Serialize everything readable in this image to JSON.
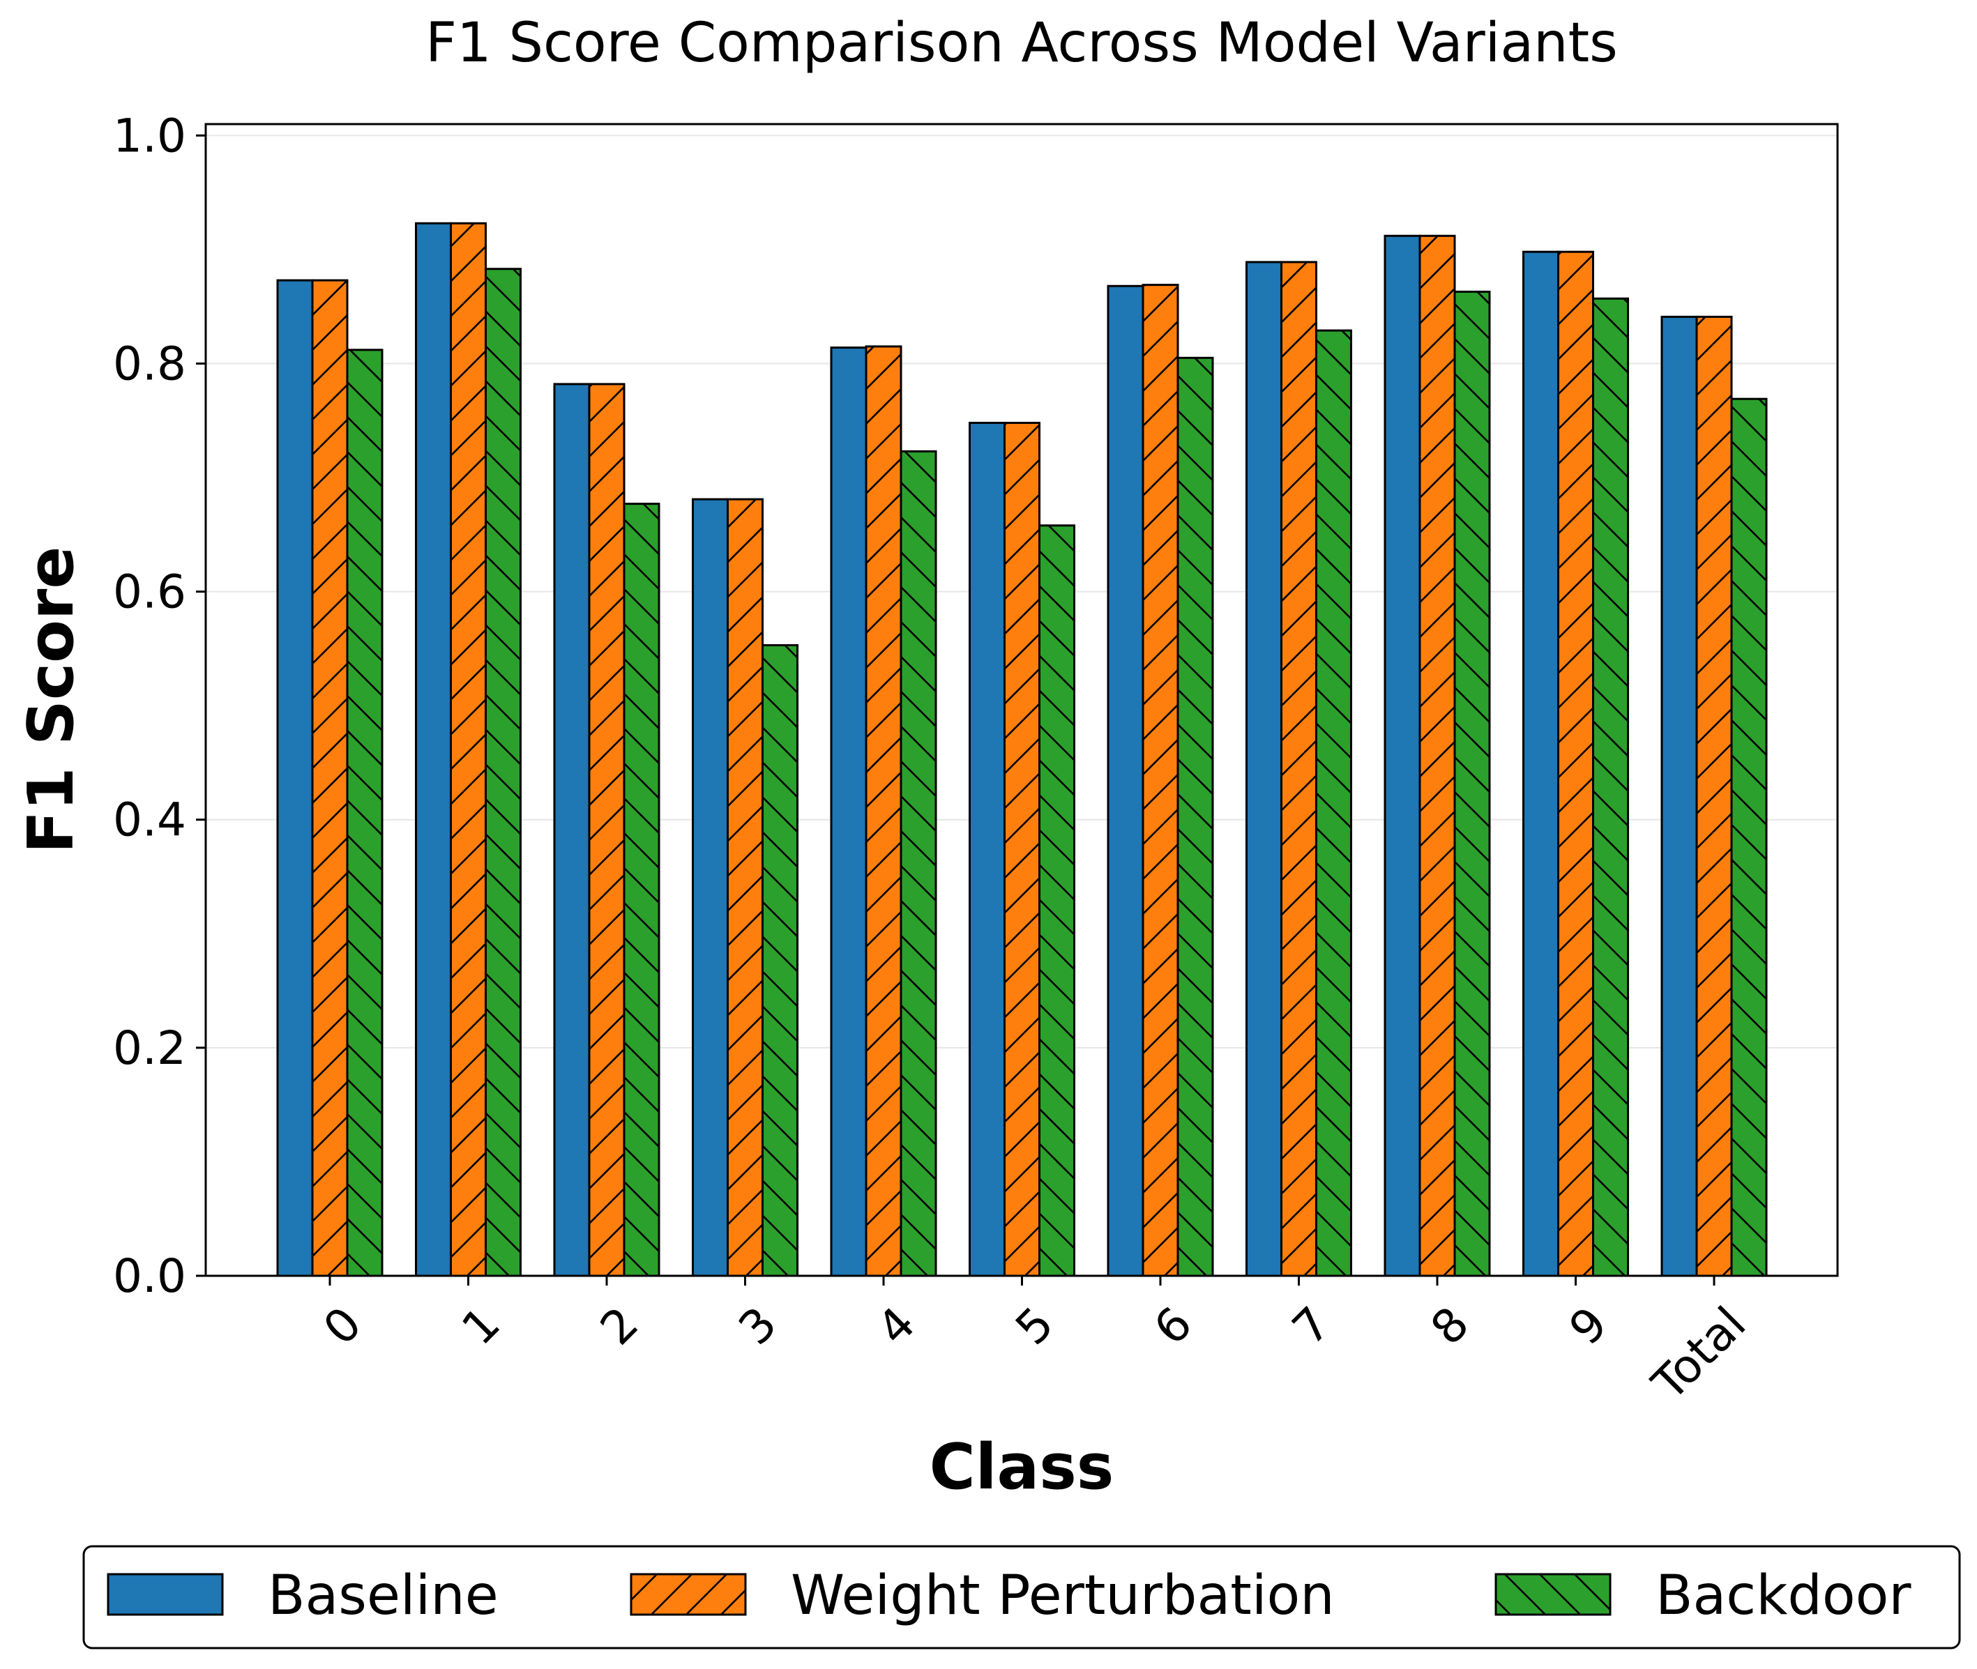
{
  "chart_data": {
    "type": "bar",
    "title": "F1 Score Comparison Across Model Variants",
    "xlabel": "Class",
    "ylabel": "F1 Score",
    "categories": [
      "0",
      "1",
      "2",
      "3",
      "4",
      "5",
      "6",
      "7",
      "8",
      "9",
      "Total"
    ],
    "ylim": [
      0,
      1.01
    ],
    "yticks": [
      "0.0",
      "0.2",
      "0.4",
      "0.6",
      "0.8",
      "1.0"
    ],
    "grid": "horizontal",
    "legend_position": "bottom",
    "series": [
      {
        "name": "Baseline",
        "color": "#1f77b4",
        "hatch": "none",
        "values": [
          0.873,
          0.923,
          0.782,
          0.681,
          0.814,
          0.748,
          0.868,
          0.889,
          0.912,
          0.898,
          0.841
        ]
      },
      {
        "name": "Weight Perturbation",
        "color": "#ff7f0e",
        "hatch": "forward-diagonal",
        "values": [
          0.873,
          0.923,
          0.782,
          0.681,
          0.815,
          0.748,
          0.869,
          0.889,
          0.912,
          0.898,
          0.841
        ]
      },
      {
        "name": "Backdoor",
        "color": "#2ca02c",
        "hatch": "back-diagonal",
        "values": [
          0.812,
          0.883,
          0.677,
          0.553,
          0.723,
          0.658,
          0.805,
          0.829,
          0.863,
          0.857,
          0.769
        ]
      }
    ]
  }
}
